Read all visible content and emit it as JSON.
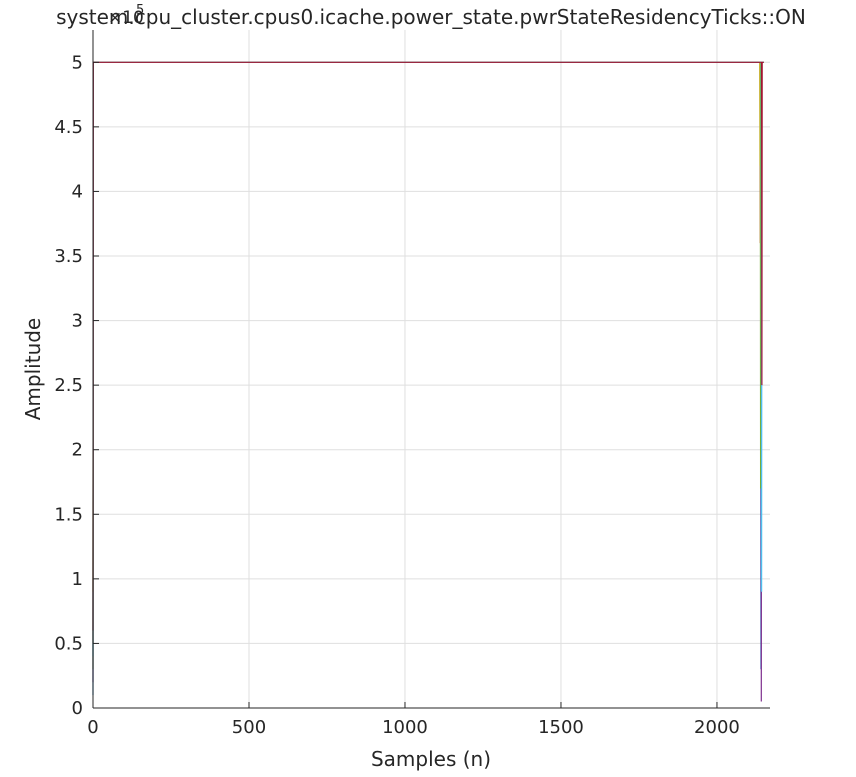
{
  "chart_data": {
    "type": "line",
    "title": "system.cpu_cluster.cpus0.icache.power_state.pwrStateResidencyTicks::ON",
    "xlabel": "Samples (n)",
    "ylabel": "Amplitude",
    "y_exponent_base": "×10",
    "y_exponent_power": "5",
    "xlim": [
      0,
      2170
    ],
    "ylim": [
      0,
      5.25
    ],
    "x_ticks": [
      0,
      500,
      1000,
      1500,
      2000
    ],
    "x_tick_labels": [
      "0",
      "500",
      "1000",
      "1500",
      "2000"
    ],
    "y_ticks": [
      0,
      0.5,
      1,
      1.5,
      2,
      2.5,
      3,
      3.5,
      4,
      4.5,
      5
    ],
    "y_tick_labels": [
      "0",
      "0.5",
      "1",
      "1.5",
      "2",
      "2.5",
      "3",
      "3.5",
      "4",
      "4.5",
      "5"
    ],
    "grid": true,
    "series": [
      {
        "color": "#0072BD",
        "x": [
          0,
          1,
          2,
          2140,
          2141,
          2142,
          2150
        ],
        "y": [
          0.1,
          5,
          5,
          5,
          0.3,
          5,
          5
        ]
      },
      {
        "color": "#D95319",
        "x": [
          0,
          1,
          2,
          2138,
          2139,
          2140,
          2150
        ],
        "y": [
          0.5,
          5,
          5,
          5,
          3.6,
          5,
          5
        ]
      },
      {
        "color": "#EDB120",
        "x": [
          0,
          1,
          2,
          2137,
          2138,
          2139,
          2150
        ],
        "y": [
          0.9,
          5,
          5,
          5,
          4.2,
          5,
          5
        ]
      },
      {
        "color": "#7E2F8E",
        "x": [
          0,
          1,
          2,
          2141,
          2142,
          2143,
          2150
        ],
        "y": [
          0.2,
          5,
          5,
          5,
          0.05,
          5,
          5
        ]
      },
      {
        "color": "#77AC30",
        "x": [
          0,
          1,
          2,
          2139,
          2140,
          2141,
          2150
        ],
        "y": [
          0.3,
          5,
          5,
          5,
          1.7,
          5,
          5
        ]
      },
      {
        "color": "#4DBEEE",
        "x": [
          0,
          1,
          2,
          2142,
          2143,
          2144,
          2150
        ],
        "y": [
          0.4,
          5,
          5,
          5,
          0.9,
          5,
          5
        ]
      },
      {
        "color": "#A2142F",
        "x": [
          0,
          1,
          2,
          2143,
          2144,
          2145,
          2150
        ],
        "y": [
          0.6,
          5,
          5,
          5,
          2.5,
          5,
          5
        ]
      }
    ]
  }
}
